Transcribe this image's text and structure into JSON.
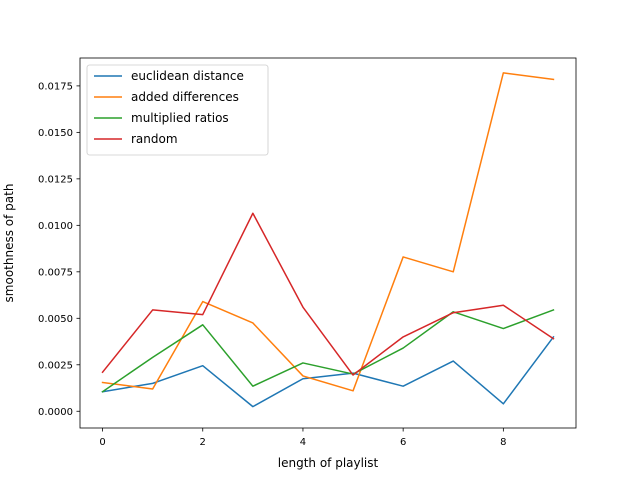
{
  "chart_data": {
    "type": "line",
    "title": "",
    "xlabel": "length of playlist",
    "ylabel": "smoothness of path",
    "x": [
      0,
      1,
      2,
      3,
      4,
      5,
      6,
      7,
      8,
      9
    ],
    "xlim": [
      -0.45,
      9.45
    ],
    "ylim": [
      -0.0009,
      0.019
    ],
    "xticks": [
      0,
      2,
      4,
      6,
      8
    ],
    "xtick_labels": [
      "0",
      "2",
      "4",
      "6",
      "8"
    ],
    "yticks": [
      0.0,
      0.0025,
      0.005,
      0.0075,
      0.01,
      0.0125,
      0.015,
      0.0175
    ],
    "ytick_labels": [
      "0.0000",
      "0.0025",
      "0.0050",
      "0.0075",
      "0.0100",
      "0.0125",
      "0.0150",
      "0.0175"
    ],
    "grid": false,
    "legend_position": "top-left",
    "series": [
      {
        "name": "euclidean distance",
        "color": "#1f77b4",
        "values": [
          0.00105,
          0.0015,
          0.00245,
          0.00025,
          0.00175,
          0.00205,
          0.00135,
          0.0027,
          0.0004,
          0.004
        ]
      },
      {
        "name": "added differences",
        "color": "#ff7f0e",
        "values": [
          0.00155,
          0.0012,
          0.0059,
          0.00475,
          0.0019,
          0.0011,
          0.0083,
          0.0075,
          0.0182,
          0.01785
        ]
      },
      {
        "name": "multiplied ratios",
        "color": "#2ca02c",
        "values": [
          0.00105,
          0.0029,
          0.00465,
          0.00135,
          0.0026,
          0.002,
          0.0034,
          0.00535,
          0.00445,
          0.00545
        ]
      },
      {
        "name": "random",
        "color": "#d62728",
        "values": [
          0.0021,
          0.00545,
          0.0052,
          0.01065,
          0.0056,
          0.00195,
          0.004,
          0.0053,
          0.0057,
          0.0039
        ]
      }
    ]
  }
}
